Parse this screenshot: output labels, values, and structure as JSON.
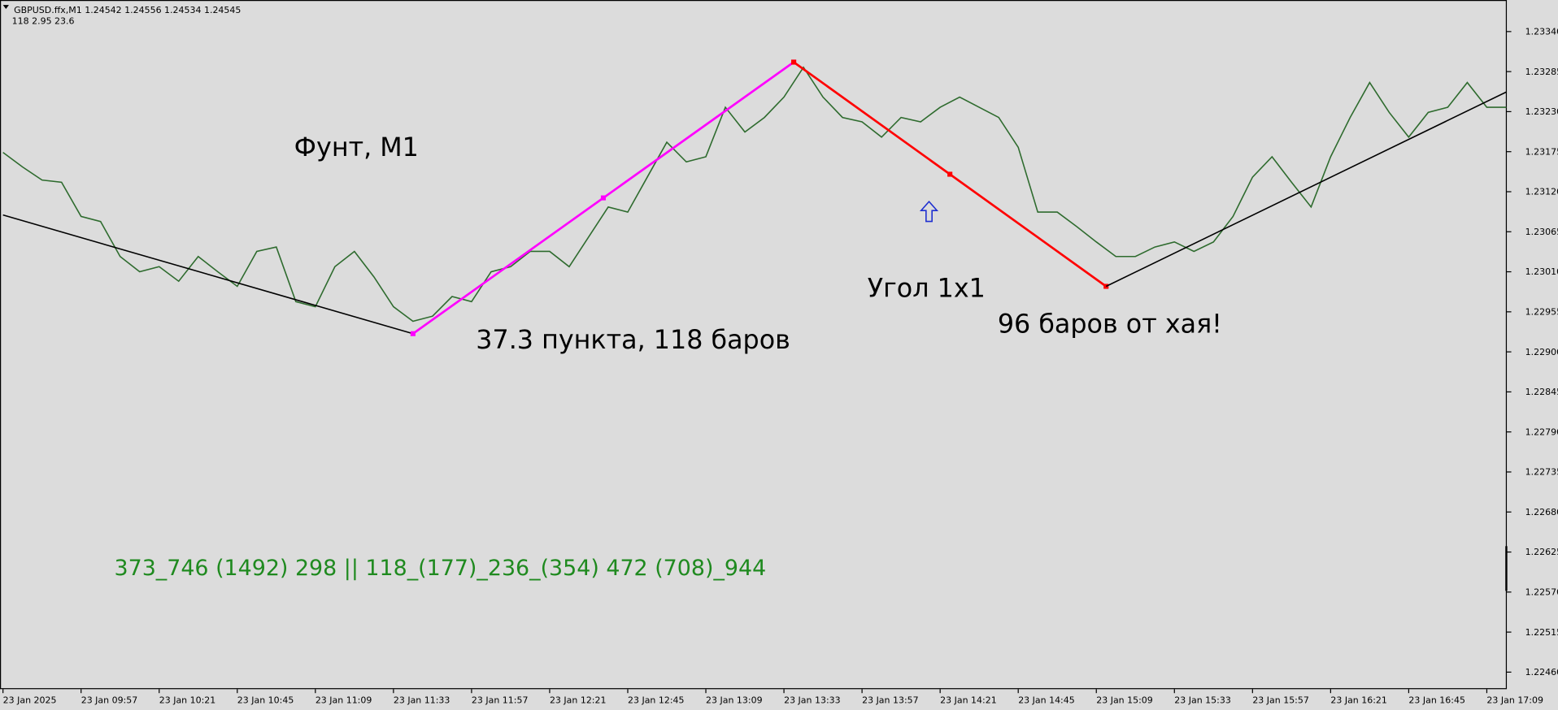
{
  "header": {
    "symbol_line": "GBPUSD.ffx,M1  1.24542 1.24556 1.24534 1.24545",
    "indicator_line": "118   2.95  23.6"
  },
  "chart_data": {
    "type": "line",
    "color": "#2e6b2e",
    "x": [
      "23 Jan 09:33",
      "23 Jan 09:39",
      "23 Jan 09:45",
      "23 Jan 09:51",
      "23 Jan 09:57",
      "23 Jan 10:03",
      "23 Jan 10:09",
      "23 Jan 10:15",
      "23 Jan 10:21",
      "23 Jan 10:27",
      "23 Jan 10:33",
      "23 Jan 10:39",
      "23 Jan 10:45",
      "23 Jan 10:51",
      "23 Jan 10:57",
      "23 Jan 11:03",
      "23 Jan 11:09",
      "23 Jan 11:15",
      "23 Jan 11:21",
      "23 Jan 11:27",
      "23 Jan 11:33",
      "23 Jan 11:39",
      "23 Jan 11:45",
      "23 Jan 11:51",
      "23 Jan 11:57",
      "23 Jan 12:03",
      "23 Jan 12:09",
      "23 Jan 12:15",
      "23 Jan 12:21",
      "23 Jan 12:27",
      "23 Jan 12:33",
      "23 Jan 12:39",
      "23 Jan 12:45",
      "23 Jan 12:51",
      "23 Jan 12:57",
      "23 Jan 13:03",
      "23 Jan 13:09",
      "23 Jan 13:15",
      "23 Jan 13:21",
      "23 Jan 13:27",
      "23 Jan 13:33",
      "23 Jan 13:39",
      "23 Jan 13:45",
      "23 Jan 13:51",
      "23 Jan 13:57",
      "23 Jan 14:03",
      "23 Jan 14:09",
      "23 Jan 14:15",
      "23 Jan 14:21",
      "23 Jan 14:27",
      "23 Jan 14:33",
      "23 Jan 14:39",
      "23 Jan 14:45",
      "23 Jan 14:51",
      "23 Jan 14:57",
      "23 Jan 15:03",
      "23 Jan 15:09",
      "23 Jan 15:15",
      "23 Jan 15:21",
      "23 Jan 15:27",
      "23 Jan 15:33",
      "23 Jan 15:39",
      "23 Jan 15:45",
      "23 Jan 15:51",
      "23 Jan 15:57",
      "23 Jan 16:03",
      "23 Jan 16:09",
      "23 Jan 16:15",
      "23 Jan 16:21",
      "23 Jan 16:27",
      "23 Jan 16:33",
      "23 Jan 16:39",
      "23 Jan 16:45",
      "23 Jan 16:51",
      "23 Jan 16:57",
      "23 Jan 17:03",
      "23 Jan 17:09",
      "23 Jan 17:15"
    ],
    "values": [
      1.23174,
      1.23154,
      1.23136,
      1.23133,
      1.23086,
      1.23079,
      1.23031,
      1.2301,
      1.23017,
      1.22997,
      1.23031,
      1.2301,
      1.2299,
      1.23038,
      1.23044,
      1.22969,
      1.22962,
      1.23017,
      1.23038,
      1.23003,
      1.22962,
      1.22942,
      1.22949,
      1.22976,
      1.22969,
      1.2301,
      1.23017,
      1.23038,
      1.23038,
      1.23017,
      1.23058,
      1.23099,
      1.23092,
      1.2314,
      1.23188,
      1.23161,
      1.23168,
      1.23236,
      1.23202,
      1.23222,
      1.2325,
      1.23291,
      1.2325,
      1.23222,
      1.23216,
      1.23195,
      1.23222,
      1.23216,
      1.23236,
      1.2325,
      1.23236,
      1.23222,
      1.23181,
      1.23092,
      1.23092,
      1.23072,
      1.23051,
      1.23031,
      1.23031,
      1.23044,
      1.23051,
      1.23038,
      1.23051,
      1.23086,
      1.2314,
      1.23168,
      1.23133,
      1.23099,
      1.23168,
      1.23222,
      1.2327,
      1.23229,
      1.23195,
      1.23229,
      1.23236,
      1.2327,
      1.23236,
      1.23236
    ],
    "ylim": [
      1.22438,
      1.23382
    ],
    "yticks": [
      {
        "value": 1.2334,
        "label": "1.23340"
      },
      1.23285,
      {
        "value": 1.2323,
        "label": "1.23230"
      },
      1.23175,
      {
        "value": 1.2312,
        "label": "1.23120"
      },
      1.23065,
      {
        "value": 1.2301,
        "label": "1.23010"
      },
      1.22955,
      {
        "value": 1.229,
        "label": "1.22900"
      },
      1.22845,
      {
        "value": 1.2279,
        "label": "1.22790"
      },
      1.22735,
      {
        "value": 1.2268,
        "label": "1.22680"
      },
      1.22625,
      {
        "value": 1.2257,
        "label": "1.22570"
      },
      1.22515,
      {
        "value": 1.2246,
        "label": "1.22460"
      }
    ],
    "xticks": [
      {
        "value": "23 Jan 09:33",
        "label": "23 Jan 2025"
      },
      "23 Jan 09:57",
      "23 Jan 10:21",
      "23 Jan 10:45",
      "23 Jan 11:09",
      "23 Jan 11:33",
      "23 Jan 11:57",
      "23 Jan 12:21",
      "23 Jan 12:45",
      "23 Jan 13:09",
      "23 Jan 13:33",
      "23 Jan 13:57",
      "23 Jan 14:21",
      "23 Jan 14:45",
      "23 Jan 15:09",
      "23 Jan 15:33",
      "23 Jan 15:57",
      "23 Jan 16:21",
      "23 Jan 16:45",
      "23 Jan 17:09"
    ],
    "trendlines": [
      {
        "color": "#000000",
        "x": [
          "23 Jan 09:33",
          "23 Jan 11:39"
        ],
        "y": [
          1.23088,
          1.22925
        ]
      },
      {
        "color": "#ff00ff",
        "x": [
          "23 Jan 11:39",
          "23 Jan 13:36"
        ],
        "y": [
          1.22925,
          1.23298
        ]
      },
      {
        "color": "#ff0000",
        "x": [
          "23 Jan 13:36",
          "23 Jan 15:12"
        ],
        "y": [
          1.23298,
          1.2299
        ]
      },
      {
        "color": "#000000",
        "x": [
          "23 Jan 15:12",
          "23 Jan 17:15"
        ],
        "y": [
          1.2299,
          1.23257
        ]
      }
    ],
    "annotations": [
      "Фунт, M1",
      "37.3 пункта, 118 баров",
      "Угол 1x1",
      "96 баров от хая!",
      "373_746 (1492) 298 || 118_(177)_236_(354) 472 (708)_944"
    ]
  }
}
